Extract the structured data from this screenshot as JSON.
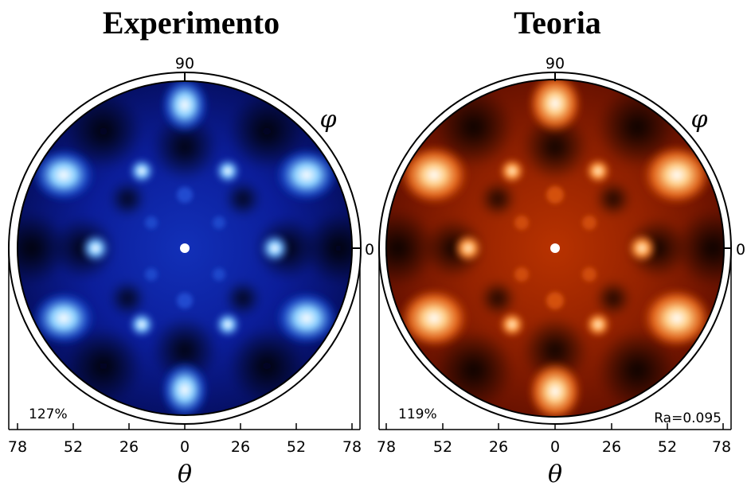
{
  "panels": [
    {
      "title": "Experimento",
      "phi_top_label": "90",
      "phi_right_label": "0",
      "phi_symbol": "φ",
      "theta_symbol": "θ",
      "theta_ticks": [
        "78",
        "52",
        "26",
        "0",
        "26",
        "52",
        "78"
      ],
      "percent_label": "127%",
      "colormap": "blue",
      "colors": {
        "dark": "#000010",
        "mid": "#0a1fa0",
        "bright": "#5fb4ff",
        "peak": "#ffffff"
      }
    },
    {
      "title": "Teoria",
      "phi_top_label": "90",
      "phi_right_label": "0",
      "phi_symbol": "φ",
      "theta_symbol": "θ",
      "theta_ticks": [
        "78",
        "52",
        "26",
        "0",
        "26",
        "52",
        "78"
      ],
      "percent_label": "119%",
      "r_factor_label": "Ra=0.095",
      "colormap": "hot",
      "colors": {
        "dark": "#000000",
        "mid": "#8a1a00",
        "bright": "#ff9a40",
        "peak": "#ffffff"
      }
    }
  ]
}
